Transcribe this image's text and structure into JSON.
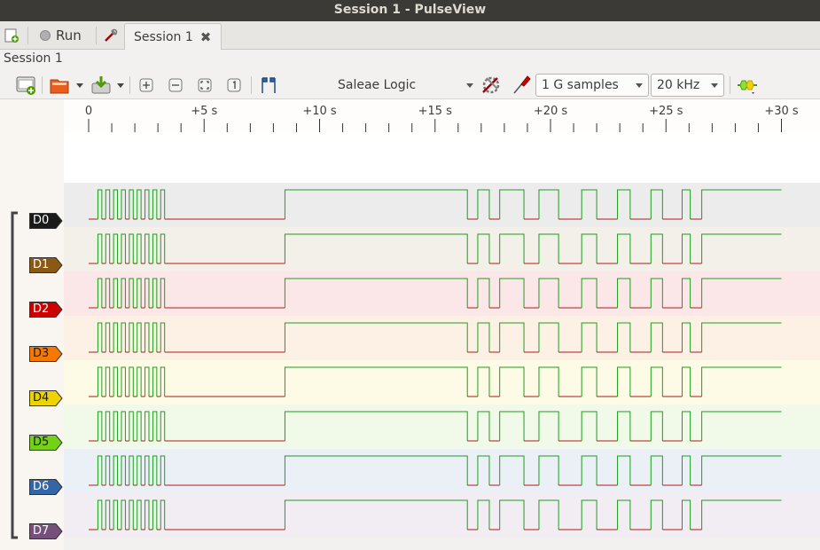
{
  "window": {
    "title": "Session 1 - PulseView"
  },
  "tabs": {
    "run_label": "Run",
    "session_tab_label": "Session 1"
  },
  "session": {
    "label": "Session 1"
  },
  "toolbar": {
    "device": "Saleae Logic",
    "samples": "1 G samples",
    "samplerate": "20 kHz"
  },
  "ruler": {
    "ticks": [
      "0",
      "+5 s",
      "+10 s",
      "+15 s",
      "+20 s",
      "+25 s",
      "+30 s"
    ]
  },
  "channels": [
    {
      "name": "D0",
      "color": "#1a1a1a",
      "text": "#ffffff",
      "bg": "#ececec"
    },
    {
      "name": "D1",
      "color": "#8a5a14",
      "text": "#ffffff",
      "bg": "#f3efe9"
    },
    {
      "name": "D2",
      "color": "#cc0000",
      "text": "#ffffff",
      "bg": "#fbe7e7"
    },
    {
      "name": "D3",
      "color": "#f57900",
      "text": "#1a1a1a",
      "bg": "#fdf1e6"
    },
    {
      "name": "D4",
      "color": "#edd400",
      "text": "#1a1a1a",
      "bg": "#fdfbe6"
    },
    {
      "name": "D5",
      "color": "#73d216",
      "text": "#1a1a1a",
      "bg": "#f1f9e9"
    },
    {
      "name": "D6",
      "color": "#3465a4",
      "text": "#ffffff",
      "bg": "#ebf0f6"
    },
    {
      "name": "D7",
      "color": "#75507b",
      "text": "#ffffff",
      "bg": "#f1edf2"
    }
  ],
  "colors": {
    "high": "#1e9e1e",
    "low": "#b01818"
  }
}
